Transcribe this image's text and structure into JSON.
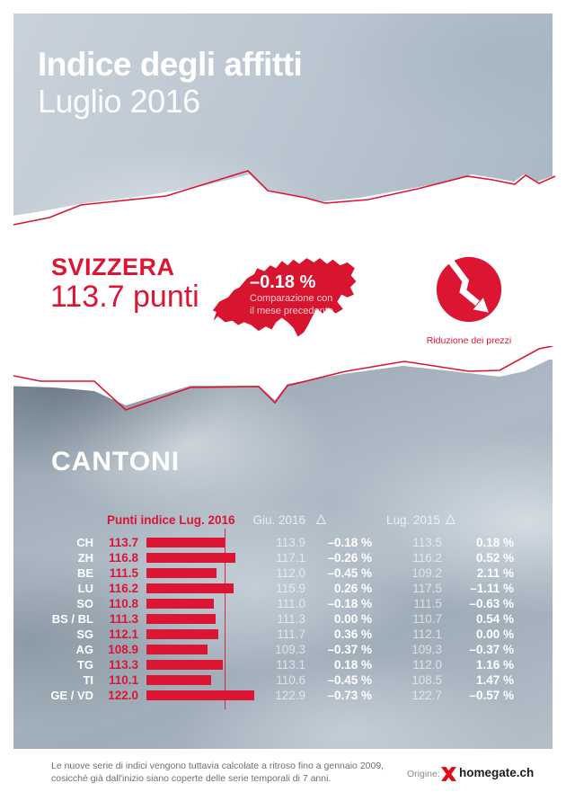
{
  "header": {
    "title": "Indice degli affitti",
    "subtitle": "Luglio 2016"
  },
  "switzerland": {
    "label": "SVIZZERA",
    "points": "113.7 punti",
    "map_change": "–0.18 %",
    "map_caption_line1": "Comparazione con",
    "map_caption_line2": "il mese precedente",
    "trend_caption": "Riduzione dei prezzi"
  },
  "cantons": {
    "section_title": "CANTONI",
    "col_points": "Punti indice Lug. 2016",
    "col_prev_month": "Giu. 2016",
    "col_prev_year": "Lug. 2015",
    "delta_symbol": "△",
    "rows": [
      {
        "canton": "CH",
        "points": "113.7",
        "points_value": 113.7,
        "prev_month": "113.9",
        "delta_month": "–0.18 %",
        "prev_year": "113.5",
        "delta_year": "0.18 %"
      },
      {
        "canton": "ZH",
        "points": "116.8",
        "points_value": 116.8,
        "prev_month": "117.1",
        "delta_month": "–0.26 %",
        "prev_year": "116.2",
        "delta_year": "0.52 %"
      },
      {
        "canton": "BE",
        "points": "111.5",
        "points_value": 111.5,
        "prev_month": "112.0",
        "delta_month": "–0.45 %",
        "prev_year": "109.2",
        "delta_year": "2.11 %"
      },
      {
        "canton": "LU",
        "points": "116.2",
        "points_value": 116.2,
        "prev_month": "115.9",
        "delta_month": "0.26 %",
        "prev_year": "117.5",
        "delta_year": "–1.11 %"
      },
      {
        "canton": "SO",
        "points": "110.8",
        "points_value": 110.8,
        "prev_month": "111.0",
        "delta_month": "–0.18 %",
        "prev_year": "111.5",
        "delta_year": "–0.63 %"
      },
      {
        "canton": "BS / BL",
        "points": "111.3",
        "points_value": 111.3,
        "prev_month": "111.3",
        "delta_month": "0.00 %",
        "prev_year": "110.7",
        "delta_year": "0.54 %"
      },
      {
        "canton": "SG",
        "points": "112.1",
        "points_value": 112.1,
        "prev_month": "111.7",
        "delta_month": "0.36 %",
        "prev_year": "112.1",
        "delta_year": "0.00 %"
      },
      {
        "canton": "AG",
        "points": "108.9",
        "points_value": 108.9,
        "prev_month": "109.3",
        "delta_month": "–0.37 %",
        "prev_year": "109.3",
        "delta_year": "–0.37 %"
      },
      {
        "canton": "TG",
        "points": "113.3",
        "points_value": 113.3,
        "prev_month": "113.1",
        "delta_month": "0.18 %",
        "prev_year": "112.0",
        "delta_year": "1.16 %"
      },
      {
        "canton": "TI",
        "points": "110.1",
        "points_value": 110.1,
        "prev_month": "110.6",
        "delta_month": "–0.45 %",
        "prev_year": "108.5",
        "delta_year": "1.47 %"
      },
      {
        "canton": "GE / VD",
        "points": "122.0",
        "points_value": 122.0,
        "prev_month": "122.9",
        "delta_month": "–0.73 %",
        "prev_year": "122.7",
        "delta_year": "–0.57 %"
      }
    ]
  },
  "chart_data": {
    "type": "bar",
    "orientation": "horizontal",
    "title": "Punti indice Lug. 2016",
    "categories": [
      "CH",
      "ZH",
      "BE",
      "LU",
      "SO",
      "BS / BL",
      "SG",
      "AG",
      "TG",
      "TI",
      "GE / VD"
    ],
    "series": [
      {
        "name": "Punti indice Lug. 2016",
        "values": [
          113.7,
          116.8,
          111.5,
          116.2,
          110.8,
          111.3,
          112.1,
          108.9,
          113.3,
          110.1,
          122.0
        ]
      },
      {
        "name": "Giu. 2016",
        "values": [
          113.9,
          117.1,
          112.0,
          115.9,
          111.0,
          111.3,
          111.7,
          109.3,
          113.1,
          110.6,
          122.9
        ]
      },
      {
        "name": "Δ vs Giu. 2016 (%)",
        "values": [
          -0.18,
          -0.26,
          -0.45,
          0.26,
          -0.18,
          0.0,
          0.36,
          -0.37,
          0.18,
          -0.45,
          -0.73
        ]
      },
      {
        "name": "Lug. 2015",
        "values": [
          113.5,
          116.2,
          109.2,
          117.5,
          111.5,
          110.7,
          112.1,
          109.3,
          112.0,
          108.5,
          122.7
        ]
      },
      {
        "name": "Δ vs Lug. 2015 (%)",
        "values": [
          0.18,
          0.52,
          2.11,
          -1.11,
          -0.63,
          0.54,
          0.0,
          -0.37,
          1.16,
          1.47,
          -0.57
        ]
      }
    ],
    "reference_line": 113.7,
    "xlim": [
      92,
      125
    ],
    "grid": false,
    "legend_position": "none",
    "national_value": {
      "label": "SVIZZERA",
      "points": 113.7,
      "delta_month_pct": -0.18
    }
  },
  "footer": {
    "note_line1": "Le nuove serie di indici vengono tuttavia calcolate a ritroso fino a gennaio 2009,",
    "note_line2": "cosicché già dall'inizio siano coperte delle serie temporali di 7 anni.",
    "origin_label": "Origine:",
    "brand": "homegate.ch"
  },
  "colors": {
    "accent_red": "#dc1532",
    "band_gray": "#a3b0bc",
    "text_white": "#ffffff"
  }
}
